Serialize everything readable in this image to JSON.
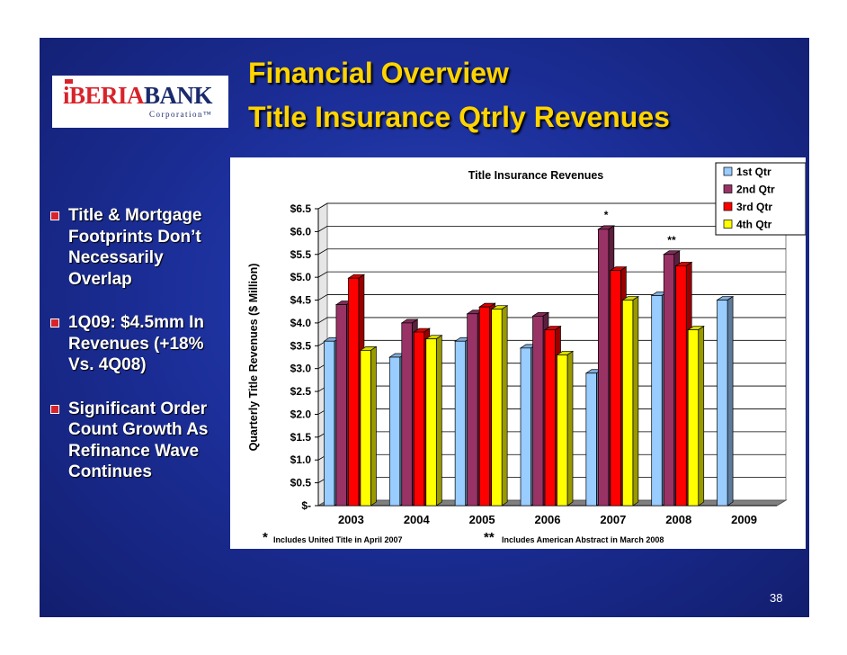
{
  "header": {
    "title": "Financial Overview",
    "subtitle": "Title Insurance Qtrly Revenues"
  },
  "logo": {
    "part1": "iBERIA",
    "part2": "BANK",
    "sub": "Corporation™"
  },
  "bullets": [
    "Title & Mortgage Footprints Don’t Necessarily Overlap",
    "1Q09: $4.5mm In Revenues (+18% Vs. 4Q08)",
    "Significant Order Count Growth As Refinance Wave Continues"
  ],
  "footnotes": {
    "note1_mark": "*",
    "note1_text": "Includes United Title in April 2007",
    "note2_mark": "**",
    "note2_text": "Includes American Abstract in March 2008"
  },
  "page_number": "38",
  "chart_data": {
    "type": "bar",
    "title": "Title Insurance Revenues",
    "ylabel": "Quarterly Title Revenues ($ Million)",
    "xlabel": "",
    "categories": [
      "2003",
      "2004",
      "2005",
      "2006",
      "2007",
      "2008",
      "2009"
    ],
    "ylim": [
      0,
      6.5
    ],
    "yticks": [
      "$-",
      "$0.5",
      "$1.0",
      "$1.5",
      "$2.0",
      "$2.5",
      "$3.0",
      "$3.5",
      "$4.0",
      "$4.5",
      "$5.0",
      "$5.5",
      "$6.0",
      "$6.5"
    ],
    "grid": true,
    "legend_position": "top-right",
    "series": [
      {
        "name": "1st Qtr",
        "color": "#99ccff",
        "values": [
          3.6,
          3.25,
          3.6,
          3.45,
          2.9,
          4.6,
          4.5
        ]
      },
      {
        "name": "2nd Qtr",
        "color": "#993366",
        "values": [
          4.4,
          4.0,
          4.2,
          4.15,
          6.05,
          5.5,
          null
        ]
      },
      {
        "name": "3rd Qtr",
        "color": "#ff0000",
        "values": [
          4.98,
          3.8,
          4.35,
          3.85,
          5.15,
          5.25,
          null
        ]
      },
      {
        "name": "4th Qtr",
        "color": "#ffff00",
        "values": [
          3.4,
          3.65,
          4.3,
          3.3,
          4.5,
          3.85,
          null
        ]
      }
    ],
    "annotations": [
      {
        "text": "*",
        "category": "2007",
        "series": "2nd Qtr"
      },
      {
        "text": "**",
        "category": "2008",
        "series": "2nd Qtr"
      }
    ]
  }
}
